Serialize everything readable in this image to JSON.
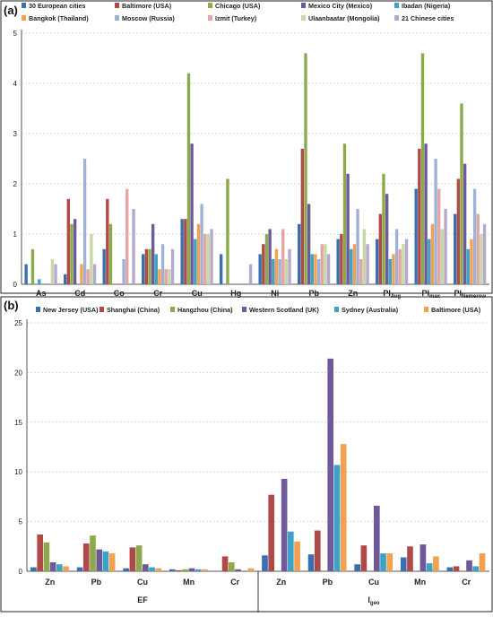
{
  "chart_data": [
    {
      "type": "bar",
      "panel_label": "(a)",
      "ylim": [
        0,
        5
      ],
      "yticks": [
        0,
        1,
        2,
        3,
        4,
        5
      ],
      "grid": true,
      "legend_position": "top",
      "categories": [
        "As",
        "Cd",
        "Co",
        "Cr",
        "Cu",
        "Hg",
        "Ni",
        "Pb",
        "Zn",
        "PI",
        "PI",
        "PI"
      ],
      "category_subscripts": [
        "",
        "",
        "",
        "",
        "",
        "",
        "",
        "",
        "",
        "Avg",
        "max",
        "Nemerow"
      ],
      "series": [
        {
          "name": "30 European cities",
          "color": "#3A6FB0",
          "values": [
            0.4,
            0.2,
            0.7,
            0.6,
            1.3,
            0.6,
            0.6,
            1.2,
            0.9,
            0.9,
            1.9,
            1.4
          ]
        },
        {
          "name": "Baltimore (USA)",
          "color": "#B04A48",
          "values": [
            0,
            1.7,
            1.7,
            0.7,
            1.3,
            0,
            0.8,
            2.7,
            1.0,
            1.4,
            2.7,
            2.1
          ]
        },
        {
          "name": "Chicago (USA)",
          "color": "#8DAA4B",
          "values": [
            0.7,
            1.2,
            1.2,
            0.7,
            4.2,
            2.1,
            1.0,
            4.6,
            2.8,
            2.2,
            4.6,
            3.6
          ]
        },
        {
          "name": "Mexico City (Mexico)",
          "color": "#6E5A9B",
          "values": [
            0,
            1.3,
            0,
            1.2,
            2.8,
            0,
            1.1,
            1.6,
            2.2,
            1.8,
            2.8,
            2.4
          ]
        },
        {
          "name": "Ibadan (Nigeria)",
          "color": "#3BA3C4",
          "values": [
            0.1,
            0,
            0,
            0.6,
            0.9,
            0,
            0.5,
            0.6,
            0.7,
            0.5,
            0.9,
            0.7
          ]
        },
        {
          "name": "Bangkok (Thailand)",
          "color": "#F3A050",
          "values": [
            0,
            0.4,
            0,
            0.3,
            1.2,
            0,
            0.7,
            0.6,
            0.8,
            0.6,
            1.2,
            0.9
          ]
        },
        {
          "name": "Moscow (Russia)",
          "color": "#9FB2D6",
          "values": [
            0,
            2.5,
            0.5,
            0.8,
            1.6,
            0,
            0.5,
            0.5,
            1.5,
            1.1,
            2.5,
            1.9
          ]
        },
        {
          "name": "Izmit (Turkey)",
          "color": "#E4A6A5",
          "values": [
            0,
            0.3,
            1.9,
            0.3,
            1.0,
            0,
            1.1,
            0.8,
            0.5,
            0.7,
            1.9,
            1.4
          ]
        },
        {
          "name": "Ulaanbaatar (Mongolia)",
          "color": "#C6D9A5",
          "values": [
            0.5,
            1.0,
            0,
            0.3,
            1.0,
            0,
            0.5,
            0.8,
            1.1,
            0.8,
            1.1,
            1.0
          ]
        },
        {
          "name": "21 Chinese cities",
          "color": "#B5A7CF",
          "values": [
            0.4,
            0.4,
            1.5,
            0.7,
            1.1,
            0.4,
            0.7,
            0.6,
            0.8,
            0.9,
            1.5,
            1.2
          ]
        }
      ]
    },
    {
      "type": "bar",
      "panel_label": "(b)",
      "ylim": [
        0,
        25
      ],
      "yticks": [
        0,
        5,
        10,
        15,
        20,
        25
      ],
      "grid": true,
      "legend_position": "top",
      "categories": [
        "Zn",
        "Pb",
        "Cu",
        "Mn",
        "Cr",
        "Zn",
        "Pb",
        "Cu",
        "Mn",
        "Cr"
      ],
      "groups": [
        {
          "label": "EF",
          "subscript": "",
          "start": 0,
          "count": 5
        },
        {
          "label": "I",
          "subscript": "geo",
          "start": 5,
          "count": 5
        }
      ],
      "series": [
        {
          "name": "New Jersey (USA)",
          "color": "#3A6FB0",
          "values": [
            0.4,
            0.4,
            0.3,
            0.2,
            0,
            1.6,
            1.7,
            0.7,
            1.4,
            0.4
          ]
        },
        {
          "name": "Shanghai (China)",
          "color": "#B04A48",
          "values": [
            3.7,
            2.8,
            2.4,
            0.1,
            1.5,
            7.7,
            4.1,
            2.6,
            2.5,
            0.5
          ]
        },
        {
          "name": "Hangzhou (China)",
          "color": "#8DAA4B",
          "values": [
            2.9,
            3.6,
            2.6,
            0.2,
            0.9,
            0,
            0,
            0,
            0,
            0
          ]
        },
        {
          "name": "Western Scotland (UK)",
          "color": "#6E5A9B",
          "values": [
            0.9,
            2.2,
            0.7,
            0.3,
            0.2,
            9.3,
            21.4,
            6.6,
            2.7,
            1.1
          ]
        },
        {
          "name": "Sydney (Australia)",
          "color": "#3BA3C4",
          "values": [
            0.7,
            2.0,
            0.4,
            0.2,
            0,
            4.0,
            10.7,
            1.8,
            0.8,
            0.5
          ]
        },
        {
          "name": "Baltimore (USA)",
          "color": "#F3A050",
          "values": [
            0.5,
            1.8,
            0.3,
            0.2,
            0.3,
            3.0,
            12.8,
            1.8,
            1.5,
            1.8
          ]
        }
      ]
    }
  ]
}
